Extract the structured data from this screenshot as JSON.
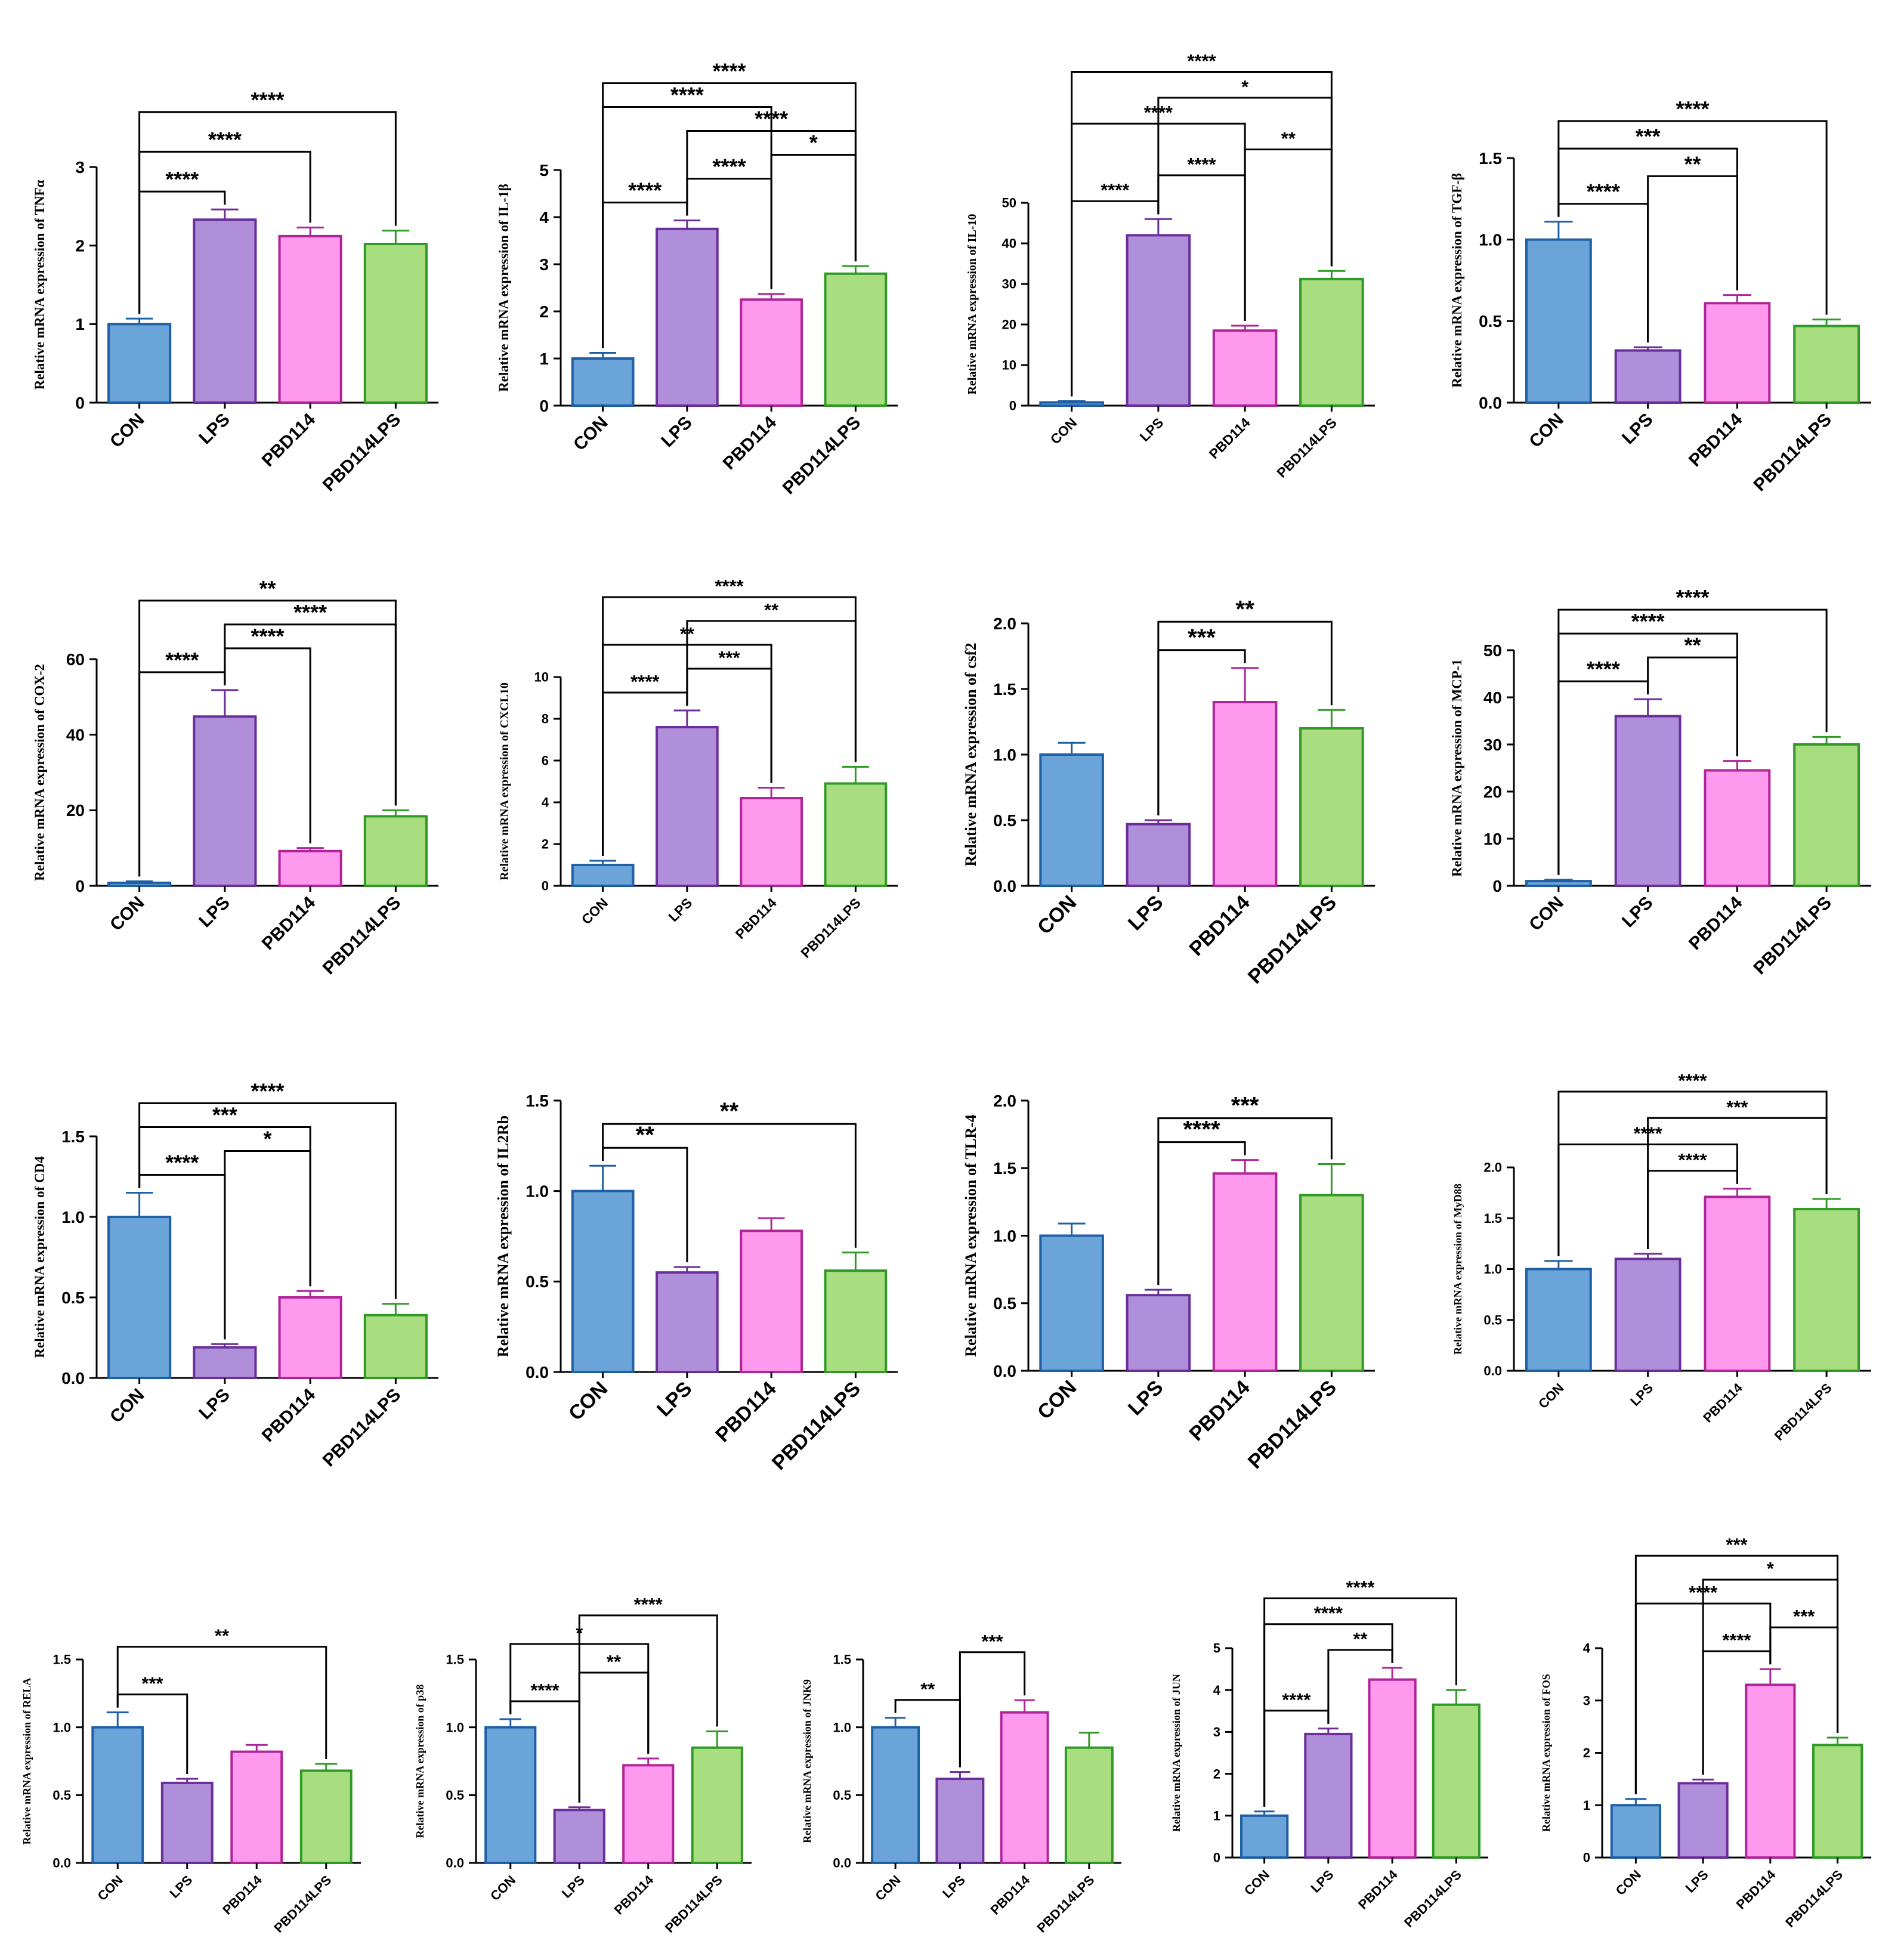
{
  "figure": {
    "categories": [
      "CON",
      "LPS",
      "PBD114",
      "PBD114LPS"
    ],
    "colors": {
      "CON": {
        "fill": "#6aa4d8",
        "stroke": "#1f5fa5"
      },
      "LPS": {
        "fill": "#b08fda",
        "stroke": "#6a2d9a"
      },
      "PBD114": {
        "fill": "#ff99ee",
        "stroke": "#b0249a"
      },
      "PBD114LPS": {
        "fill": "#a8de80",
        "stroke": "#2f9a26"
      }
    }
  },
  "chart_data": [
    {
      "type": "bar",
      "ylabel": "Relative mRNA expression of TNFα",
      "ylim": [
        0,
        3
      ],
      "ticks": [
        0,
        1,
        2,
        3
      ],
      "tick_labels": [
        "0",
        "1",
        "2",
        "3"
      ],
      "categories": [
        "CON",
        "LPS",
        "PBD114",
        "PBD114LPS"
      ],
      "values": [
        1.0,
        2.33,
        2.12,
        2.02
      ],
      "errors": [
        0.07,
        0.13,
        0.11,
        0.17
      ],
      "annotations": [
        {
          "from": 0,
          "to": 1,
          "label": "****"
        },
        {
          "from": 0,
          "to": 2,
          "label": "****"
        },
        {
          "from": 0,
          "to": 3,
          "label": "****"
        }
      ]
    },
    {
      "type": "bar",
      "ylabel": "Relative mRNA expression of IL-1β",
      "ylim": [
        0,
        5
      ],
      "ticks": [
        0,
        1,
        2,
        3,
        4,
        5
      ],
      "tick_labels": [
        "0",
        "1",
        "2",
        "3",
        "4",
        "5"
      ],
      "categories": [
        "CON",
        "LPS",
        "PBD114",
        "PBD114LPS"
      ],
      "values": [
        1.0,
        3.75,
        2.25,
        2.8
      ],
      "errors": [
        0.12,
        0.18,
        0.12,
        0.16
      ],
      "annotations": [
        {
          "from": 0,
          "to": 1,
          "label": "****"
        },
        {
          "from": 1,
          "to": 2,
          "label": "****"
        },
        {
          "from": 2,
          "to": 3,
          "label": "*"
        },
        {
          "from": 1,
          "to": 3,
          "label": "****"
        },
        {
          "from": 0,
          "to": 2,
          "label": "****"
        },
        {
          "from": 0,
          "to": 3,
          "label": "****"
        }
      ]
    },
    {
      "type": "bar",
      "ylabel": "Relative mRNA expression of IL-10",
      "ylim": [
        0,
        50
      ],
      "ticks": [
        0,
        10,
        20,
        30,
        40,
        50
      ],
      "tick_labels": [
        "0",
        "10",
        "20",
        "30",
        "40",
        "50"
      ],
      "categories": [
        "CON",
        "LPS",
        "PBD114",
        "PBD114LPS"
      ],
      "values": [
        0.8,
        42,
        18.5,
        31.2
      ],
      "errors": [
        0.3,
        4.0,
        1.2,
        2.0
      ],
      "annotations": [
        {
          "from": 0,
          "to": 1,
          "label": "****"
        },
        {
          "from": 1,
          "to": 2,
          "label": "****"
        },
        {
          "from": 2,
          "to": 3,
          "label": "**"
        },
        {
          "from": 0,
          "to": 2,
          "label": "****"
        },
        {
          "from": 1,
          "to": 3,
          "label": "*"
        },
        {
          "from": 0,
          "to": 3,
          "label": "****"
        }
      ]
    },
    {
      "type": "bar",
      "ylabel": "Relative mRNA expression of TGF-β",
      "ylim": [
        0,
        1.5
      ],
      "ticks": [
        0,
        0.5,
        1,
        1.5
      ],
      "tick_labels": [
        "0.0",
        "0.5",
        "1.0",
        "1.5"
      ],
      "categories": [
        "CON",
        "LPS",
        "PBD114",
        "PBD114LPS"
      ],
      "values": [
        1.0,
        0.32,
        0.61,
        0.47
      ],
      "errors": [
        0.11,
        0.02,
        0.05,
        0.04
      ],
      "annotations": [
        {
          "from": 0,
          "to": 1,
          "label": "****"
        },
        {
          "from": 1,
          "to": 2,
          "label": "**"
        },
        {
          "from": 0,
          "to": 2,
          "label": "***"
        },
        {
          "from": 0,
          "to": 3,
          "label": "****"
        }
      ]
    },
    {
      "type": "bar",
      "ylabel": "Relative mRNA expression of COX-2",
      "ylim": [
        0,
        60
      ],
      "ticks": [
        0,
        20,
        40,
        60
      ],
      "tick_labels": [
        "0",
        "20",
        "40",
        "60"
      ],
      "categories": [
        "CON",
        "LPS",
        "PBD114",
        "PBD114LPS"
      ],
      "values": [
        0.8,
        44.8,
        9.2,
        18.4
      ],
      "errors": [
        0.4,
        7.0,
        0.8,
        1.6
      ],
      "annotations": [
        {
          "from": 0,
          "to": 1,
          "label": "****"
        },
        {
          "from": 1,
          "to": 2,
          "label": "****"
        },
        {
          "from": 1,
          "to": 3,
          "label": "****"
        },
        {
          "from": 0,
          "to": 3,
          "label": "**"
        }
      ]
    },
    {
      "type": "bar",
      "ylabel": "Relative mRNA expression of CXCL10",
      "ylim": [
        0,
        10
      ],
      "ticks": [
        0,
        2,
        4,
        6,
        8,
        10
      ],
      "tick_labels": [
        "0",
        "2",
        "4",
        "6",
        "8",
        "10"
      ],
      "categories": [
        "CON",
        "LPS",
        "PBD114",
        "PBD114LPS"
      ],
      "values": [
        1.0,
        7.6,
        4.2,
        4.9
      ],
      "errors": [
        0.2,
        0.8,
        0.5,
        0.8
      ],
      "annotations": [
        {
          "from": 0,
          "to": 1,
          "label": "****"
        },
        {
          "from": 1,
          "to": 2,
          "label": "***"
        },
        {
          "from": 0,
          "to": 2,
          "label": "**"
        },
        {
          "from": 1,
          "to": 3,
          "label": "**"
        },
        {
          "from": 0,
          "to": 3,
          "label": "****"
        }
      ]
    },
    {
      "type": "bar",
      "ylabel": "Relative mRNA expression of csf2",
      "ylim": [
        0,
        2
      ],
      "ticks": [
        0,
        0.5,
        1,
        1.5,
        2
      ],
      "tick_labels": [
        "0.0",
        "0.5",
        "1.0",
        "1.5",
        "2.0"
      ],
      "categories": [
        "CON",
        "LPS",
        "PBD114",
        "PBD114LPS"
      ],
      "values": [
        1.0,
        0.47,
        1.4,
        1.2
      ],
      "errors": [
        0.09,
        0.03,
        0.26,
        0.14
      ],
      "annotations": [
        {
          "from": 1,
          "to": 2,
          "label": "***"
        },
        {
          "from": 1,
          "to": 3,
          "label": "**"
        }
      ]
    },
    {
      "type": "bar",
      "ylabel": "Relative mRNA expression of MCP-1",
      "ylim": [
        0,
        50
      ],
      "ticks": [
        0,
        10,
        20,
        30,
        40,
        50
      ],
      "tick_labels": [
        "0",
        "10",
        "20",
        "30",
        "40",
        "50"
      ],
      "categories": [
        "CON",
        "LPS",
        "PBD114",
        "PBD114LPS"
      ],
      "values": [
        1.0,
        36,
        24.5,
        30
      ],
      "errors": [
        0.3,
        3.6,
        2.0,
        1.6
      ],
      "annotations": [
        {
          "from": 0,
          "to": 1,
          "label": "****"
        },
        {
          "from": 1,
          "to": 2,
          "label": "**"
        },
        {
          "from": 0,
          "to": 2,
          "label": "****"
        },
        {
          "from": 0,
          "to": 3,
          "label": "****"
        }
      ]
    },
    {
      "type": "bar",
      "ylabel": "Relative mRNA expression of CD4",
      "ylim": [
        0,
        1.5
      ],
      "ticks": [
        0,
        0.5,
        1,
        1.5
      ],
      "tick_labels": [
        "0.0",
        "0.5",
        "1.0",
        "1.5"
      ],
      "categories": [
        "CON",
        "LPS",
        "PBD114",
        "PBD114LPS"
      ],
      "values": [
        1.0,
        0.19,
        0.5,
        0.39
      ],
      "errors": [
        0.15,
        0.02,
        0.04,
        0.07
      ],
      "annotations": [
        {
          "from": 0,
          "to": 1,
          "label": "****"
        },
        {
          "from": 1,
          "to": 2,
          "label": "*"
        },
        {
          "from": 0,
          "to": 2,
          "label": "***"
        },
        {
          "from": 0,
          "to": 3,
          "label": "****"
        }
      ]
    },
    {
      "type": "bar",
      "ylabel": "Relative mRNA expression of IL2Rb",
      "ylim": [
        0,
        1.5
      ],
      "ticks": [
        0,
        0.5,
        1,
        1.5
      ],
      "tick_labels": [
        "0.0",
        "0.5",
        "1.0",
        "1.5"
      ],
      "categories": [
        "CON",
        "LPS",
        "PBD114",
        "PBD114LPS"
      ],
      "values": [
        1.0,
        0.55,
        0.78,
        0.56
      ],
      "errors": [
        0.14,
        0.03,
        0.07,
        0.1
      ],
      "annotations": [
        {
          "from": 0,
          "to": 1,
          "label": "**"
        },
        {
          "from": 0,
          "to": 3,
          "label": "**"
        }
      ]
    },
    {
      "type": "bar",
      "ylabel": "Relative mRNA expression of TLR-4",
      "ylim": [
        0,
        2
      ],
      "ticks": [
        0,
        0.5,
        1,
        1.5,
        2
      ],
      "tick_labels": [
        "0.0",
        "0.5",
        "1.0",
        "1.5",
        "2.0"
      ],
      "categories": [
        "CON",
        "LPS",
        "PBD114",
        "PBD114LPS"
      ],
      "values": [
        1.0,
        0.56,
        1.46,
        1.3
      ],
      "errors": [
        0.09,
        0.04,
        0.1,
        0.23
      ],
      "annotations": [
        {
          "from": 1,
          "to": 2,
          "label": "****"
        },
        {
          "from": 1,
          "to": 3,
          "label": "***"
        }
      ]
    },
    {
      "type": "bar",
      "ylabel": "Relative mRNA expression of MyD88",
      "ylim": [
        0,
        2
      ],
      "ticks": [
        0,
        0.5,
        1,
        1.5,
        2
      ],
      "tick_labels": [
        "0.0",
        "0.5",
        "1.0",
        "1.5",
        "2.0"
      ],
      "categories": [
        "CON",
        "LPS",
        "PBD114",
        "PBD114LPS"
      ],
      "values": [
        1.0,
        1.1,
        1.71,
        1.59
      ],
      "errors": [
        0.08,
        0.05,
        0.08,
        0.1
      ],
      "annotations": [
        {
          "from": 1,
          "to": 2,
          "label": "****"
        },
        {
          "from": 0,
          "to": 2,
          "label": "****"
        },
        {
          "from": 1,
          "to": 3,
          "label": "***"
        },
        {
          "from": 0,
          "to": 3,
          "label": "****"
        }
      ]
    },
    {
      "type": "bar",
      "ylabel": "Relative mRNA expression of RELA",
      "ylim": [
        0,
        1.5
      ],
      "ticks": [
        0,
        0.5,
        1,
        1.5
      ],
      "tick_labels": [
        "0.0",
        "0.5",
        "1.0",
        "1.5"
      ],
      "categories": [
        "CON",
        "LPS",
        "PBD114",
        "PBD114LPS"
      ],
      "values": [
        1.0,
        0.59,
        0.82,
        0.68
      ],
      "errors": [
        0.11,
        0.03,
        0.05,
        0.05
      ],
      "annotations": [
        {
          "from": 0,
          "to": 1,
          "label": "***"
        },
        {
          "from": 0,
          "to": 3,
          "label": "**"
        }
      ]
    },
    {
      "type": "bar",
      "ylabel": "Relative mRNA expression of p38",
      "ylim": [
        0,
        1.5
      ],
      "ticks": [
        0,
        0.5,
        1,
        1.5
      ],
      "tick_labels": [
        "0.0",
        "0.5",
        "1.0",
        "1.5"
      ],
      "categories": [
        "CON",
        "LPS",
        "PBD114",
        "PBD114LPS"
      ],
      "values": [
        1.0,
        0.39,
        0.72,
        0.85
      ],
      "errors": [
        0.06,
        0.02,
        0.05,
        0.12
      ],
      "annotations": [
        {
          "from": 0,
          "to": 1,
          "label": "****"
        },
        {
          "from": 1,
          "to": 2,
          "label": "**"
        },
        {
          "from": 0,
          "to": 2,
          "label": "*"
        },
        {
          "from": 1,
          "to": 3,
          "label": "****"
        }
      ]
    },
    {
      "type": "bar",
      "ylabel": "Relative mRNA expression of JNK9",
      "ylim": [
        0,
        1.5
      ],
      "ticks": [
        0,
        0.5,
        1,
        1.5
      ],
      "tick_labels": [
        "0.0",
        "0.5",
        "1.0",
        "1.5"
      ],
      "categories": [
        "CON",
        "LPS",
        "PBD114",
        "PBD114LPS"
      ],
      "values": [
        1.0,
        0.62,
        1.11,
        0.85
      ],
      "errors": [
        0.07,
        0.05,
        0.09,
        0.11
      ],
      "annotations": [
        {
          "from": 0,
          "to": 1,
          "label": "**"
        },
        {
          "from": 1,
          "to": 2,
          "label": "***"
        }
      ]
    },
    {
      "type": "bar",
      "ylabel": "Relative mRNA expression of JUN",
      "ylim": [
        0,
        5
      ],
      "ticks": [
        0,
        1,
        2,
        3,
        4,
        5
      ],
      "tick_labels": [
        "0",
        "1",
        "2",
        "3",
        "4",
        "5"
      ],
      "categories": [
        "CON",
        "LPS",
        "PBD114",
        "PBD114LPS"
      ],
      "values": [
        1.0,
        2.95,
        4.25,
        3.65
      ],
      "errors": [
        0.1,
        0.13,
        0.28,
        0.35
      ],
      "annotations": [
        {
          "from": 0,
          "to": 1,
          "label": "****"
        },
        {
          "from": 1,
          "to": 2,
          "label": "**"
        },
        {
          "from": 0,
          "to": 2,
          "label": "****"
        },
        {
          "from": 0,
          "to": 3,
          "label": "****"
        }
      ]
    },
    {
      "type": "bar",
      "ylabel": "Relative mRNA expression of FOS",
      "ylim": [
        0,
        4
      ],
      "ticks": [
        0,
        1,
        2,
        3,
        4
      ],
      "tick_labels": [
        "0",
        "1",
        "2",
        "3",
        "4"
      ],
      "categories": [
        "CON",
        "LPS",
        "PBD114",
        "PBD114LPS"
      ],
      "values": [
        1.0,
        1.42,
        3.3,
        2.15
      ],
      "errors": [
        0.12,
        0.07,
        0.3,
        0.14
      ],
      "annotations": [
        {
          "from": 1,
          "to": 2,
          "label": "****"
        },
        {
          "from": 2,
          "to": 3,
          "label": "***"
        },
        {
          "from": 0,
          "to": 2,
          "label": "****"
        },
        {
          "from": 1,
          "to": 3,
          "label": "*"
        },
        {
          "from": 0,
          "to": 3,
          "label": "***"
        }
      ]
    }
  ]
}
